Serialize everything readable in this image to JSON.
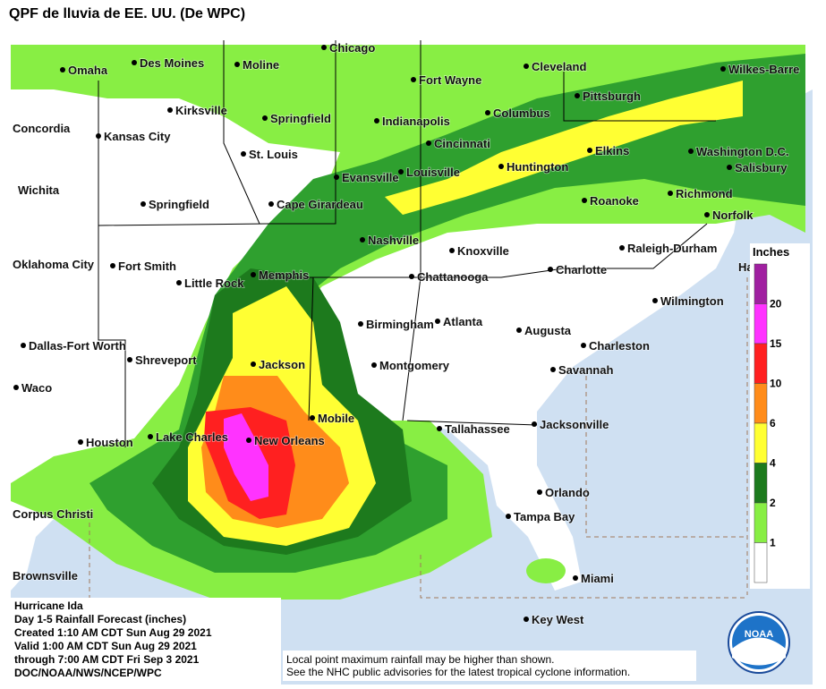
{
  "header": {
    "title": "QPF de lluvia de EE. UU. (De WPC)"
  },
  "cities": [
    "Chicago",
    "Omaha",
    "Des Moines",
    "Moline",
    "Fort Wayne",
    "Cleveland",
    "Wilkes-Barre",
    "Kirksville",
    "Springfield",
    "Indianapolis",
    "Columbus",
    "Pittsburgh",
    "Concordia",
    "Kansas City",
    "Cincinnati",
    "St. Louis",
    "Elkins",
    "Washington D.C.",
    "Salisbury",
    "Huntington",
    "Evansville",
    "Louisville",
    "Wichita",
    "Springfield",
    "Cape Girardeau",
    "Richmond",
    "Roanoke",
    "Norfolk",
    "Nashville",
    "Knoxville",
    "Raleigh-Durham",
    "Oklahoma City",
    "Fort Smith",
    "Ha",
    "Memphis",
    "Chattanooga",
    "Charlotte",
    "Little Rock",
    "Wilmington",
    "Birmingham",
    "Atlanta",
    "Augusta",
    "Dallas-Fort Worth",
    "Charleston",
    "Shreveport",
    "Jackson",
    "Montgomery",
    "Savannah",
    "Waco",
    "Mobile",
    "Jacksonville",
    "Tallahassee",
    "Lake Charles",
    "New Orleans",
    "Houston",
    "Orlando",
    "Corpus Christi",
    "Tampa Bay",
    "Miami",
    "Brownsville",
    "Key West"
  ],
  "legend": {
    "title": "Inches",
    "levels": [
      20,
      15,
      10,
      6,
      4,
      2,
      1
    ]
  },
  "info_box": [
    "Hurricane Ida",
    "Day 1-5 Rainfall Forecast (inches)",
    "Created 1:10 AM CDT Sun Aug 29 2021",
    "Valid 1:00 AM CDT Sun Aug 29 2021",
    "through 7:00 AM CDT Fri Sep 3 2021",
    "DOC/NOAA/NWS/NCEP/WPC"
  ],
  "note": [
    "Local point maximum rainfall may be higher than shown.",
    "See the NHC public advisories for the latest tropical cyclone information."
  ],
  "logo": "NOAA"
}
